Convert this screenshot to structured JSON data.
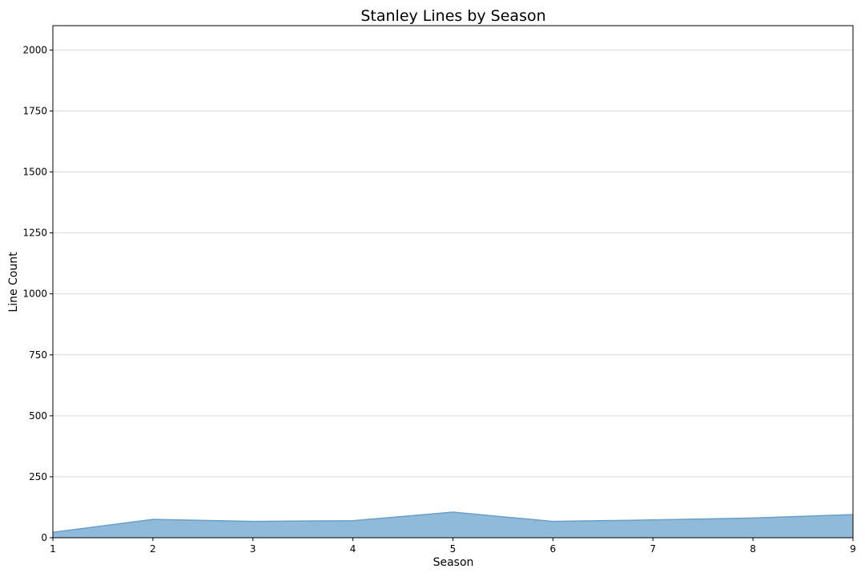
{
  "chart_data": {
    "type": "area",
    "title": "Stanley Lines by Season",
    "xlabel": "Season",
    "ylabel": "Line Count",
    "x": [
      1,
      2,
      3,
      4,
      5,
      6,
      7,
      8,
      9
    ],
    "series": [
      {
        "values": [
          22,
          75,
          67,
          70,
          105,
          67,
          73,
          81,
          95
        ],
        "fill_color": "#8fbad9",
        "line_color": "#6a9fc7"
      }
    ],
    "xlim": [
      1,
      9
    ],
    "ylim": [
      0,
      2100
    ],
    "xticks": [
      1,
      2,
      3,
      4,
      5,
      6,
      7,
      8,
      9
    ],
    "yticks": [
      0,
      250,
      500,
      750,
      1000,
      1250,
      1500,
      1750,
      2000
    ],
    "grid": "horizontal"
  }
}
